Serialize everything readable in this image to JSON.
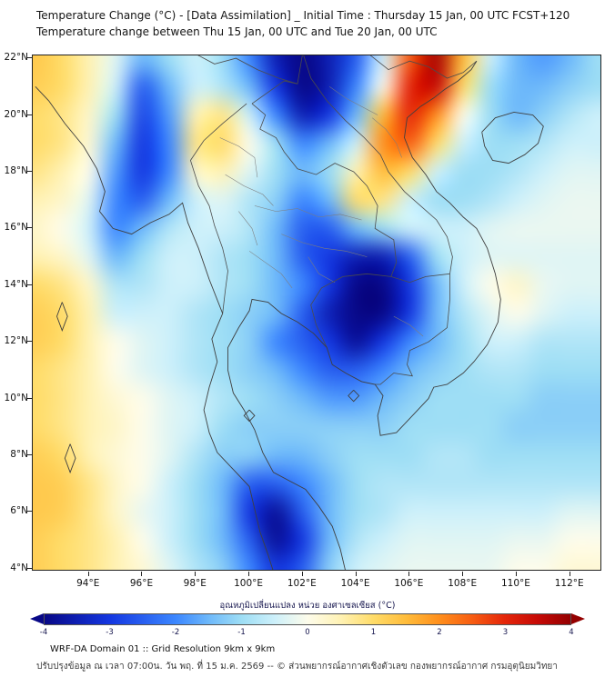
{
  "footer": {
    "line1": "WRF-DA Domain 01 :: Grid Resolution 9km x 9km",
    "line2": "ปรับปรุงข้อมูล ณ เวลา 07:00น. วัน พฤ. ที่ 15 ม.ค. 2569 -- © ส่วนพยากรณ์อากาศเชิงตัวเลข กองพยากรณ์อากาศ กรมอุตุนิยมวิทยา"
  },
  "chart_data": {
    "type": "heatmap",
    "title": "Temperature Change (°C) - [Data Assimilation] _ Initial Time : Thursday 15 Jan, 00 UTC FCST+120",
    "subtitle": "Temperature change between Thu 15 Jan, 00 UTC and Tue 20 Jan, 00 UTC",
    "projection": "lon-lat",
    "lon_range": [
      91.9,
      113.2
    ],
    "lat_range": [
      3.9,
      22.1
    ],
    "x_ticks": [
      {
        "value": 94,
        "label": "94°E"
      },
      {
        "value": 96,
        "label": "96°E"
      },
      {
        "value": 98,
        "label": "98°E"
      },
      {
        "value": 100,
        "label": "100°E"
      },
      {
        "value": 102,
        "label": "102°E"
      },
      {
        "value": 104,
        "label": "104°E"
      },
      {
        "value": 106,
        "label": "106°E"
      },
      {
        "value": 108,
        "label": "108°E"
      },
      {
        "value": 110,
        "label": "110°E"
      },
      {
        "value": 112,
        "label": "112°E"
      }
    ],
    "y_ticks": [
      {
        "value": 22,
        "label": "22°N"
      },
      {
        "value": 20,
        "label": "20°N"
      },
      {
        "value": 18,
        "label": "18°N"
      },
      {
        "value": 16,
        "label": "16°N"
      },
      {
        "value": 14,
        "label": "14°N"
      },
      {
        "value": 12,
        "label": "12°N"
      },
      {
        "value": 10,
        "label": "10°N"
      },
      {
        "value": 8,
        "label": "8°N"
      },
      {
        "value": 6,
        "label": "6°N"
      },
      {
        "value": 4,
        "label": "4°N"
      }
    ],
    "grid": {
      "lon0": 92,
      "dlon": 1,
      "lat0": 22,
      "dlat": -1
    },
    "values_c": [
      [
        1.3,
        1.0,
        0.5,
        -0.3,
        -1.5,
        -1.0,
        -0.5,
        -1.0,
        -2.0,
        -3.5,
        -4.2,
        -3.5,
        -2.5,
        -0.5,
        2.5,
        3.8,
        1.5,
        -0.5,
        -1.5,
        -1.8,
        -1.5,
        -1.0
      ],
      [
        1.2,
        1.0,
        0.5,
        -0.5,
        -2.5,
        -1.5,
        -0.5,
        -0.8,
        -1.5,
        -3.0,
        -4.0,
        -3.5,
        -2.0,
        0.0,
        3.0,
        3.5,
        1.0,
        -1.0,
        -1.5,
        -1.5,
        -1.2,
        -1.0
      ],
      [
        1.0,
        0.8,
        0.3,
        -1.0,
        -2.8,
        -1.8,
        0.5,
        0.8,
        -0.5,
        -2.0,
        -3.5,
        -3.0,
        -1.5,
        1.5,
        3.0,
        2.0,
        0.0,
        -1.0,
        -1.5,
        -1.2,
        -0.8,
        -0.5
      ],
      [
        1.0,
        0.8,
        0.2,
        -1.5,
        -3.0,
        -2.0,
        0.8,
        1.0,
        0.0,
        -1.0,
        -2.0,
        -1.5,
        -0.5,
        2.0,
        2.5,
        1.0,
        -0.5,
        -1.0,
        -1.0,
        -0.8,
        -0.5,
        -0.5
      ],
      [
        0.8,
        0.5,
        0.0,
        -1.8,
        -3.0,
        -2.0,
        0.3,
        0.5,
        -0.3,
        -1.0,
        -1.5,
        -1.0,
        0.5,
        1.5,
        1.0,
        -0.5,
        -1.0,
        -1.0,
        -0.8,
        -0.5,
        -0.3,
        -0.3
      ],
      [
        0.5,
        0.3,
        -0.3,
        -2.0,
        -2.5,
        -1.5,
        -0.5,
        -0.3,
        -0.8,
        -1.2,
        -2.0,
        -1.5,
        1.0,
        0.8,
        -0.5,
        -1.0,
        -1.0,
        -0.8,
        -0.5,
        -0.3,
        -0.2,
        -0.2
      ],
      [
        0.3,
        0.0,
        -0.5,
        -2.0,
        -1.5,
        -0.8,
        -0.5,
        -0.5,
        -0.8,
        -1.5,
        -2.5,
        -2.5,
        -1.5,
        -1.0,
        -0.5,
        -0.5,
        -0.5,
        -0.3,
        -0.2,
        -0.2,
        -0.2,
        -0.2
      ],
      [
        0.5,
        0.3,
        -0.3,
        -1.5,
        -1.0,
        -0.5,
        -0.5,
        -0.8,
        -1.0,
        -1.5,
        -2.5,
        -3.0,
        -3.5,
        -3.5,
        -2.5,
        -1.0,
        -0.5,
        -0.3,
        -0.3,
        -0.3,
        -0.3,
        -0.3
      ],
      [
        1.0,
        0.8,
        0.3,
        -0.8,
        -0.8,
        -0.5,
        -0.5,
        -0.8,
        -1.0,
        -1.5,
        -2.0,
        -3.0,
        -4.2,
        -4.2,
        -3.0,
        -1.5,
        -0.5,
        0.0,
        0.3,
        -0.2,
        -0.3,
        -0.3
      ],
      [
        1.2,
        1.0,
        0.5,
        -0.5,
        -0.5,
        -0.5,
        -0.8,
        -1.0,
        -1.2,
        -1.5,
        -2.5,
        -3.5,
        -4.2,
        -4.2,
        -3.0,
        -1.5,
        -0.8,
        -0.3,
        0.0,
        -0.3,
        -0.5,
        -0.5
      ],
      [
        1.2,
        1.0,
        0.5,
        0.0,
        -0.3,
        -0.5,
        -0.8,
        -1.0,
        -1.2,
        -2.0,
        -2.5,
        -3.0,
        -3.8,
        -3.0,
        -2.0,
        -1.5,
        -1.0,
        -0.5,
        -0.5,
        -0.8,
        -0.8,
        -0.8
      ],
      [
        1.0,
        0.8,
        0.5,
        0.0,
        -0.3,
        -0.5,
        -0.8,
        -1.0,
        -1.2,
        -1.5,
        -2.0,
        -2.5,
        -2.5,
        -2.0,
        -1.5,
        -1.2,
        -1.0,
        -0.8,
        -0.8,
        -1.0,
        -1.0,
        -1.0
      ],
      [
        1.0,
        0.8,
        0.5,
        0.2,
        0.0,
        -0.3,
        -0.5,
        -0.8,
        -1.0,
        -1.2,
        -1.5,
        -1.8,
        -1.8,
        -1.5,
        -1.2,
        -1.0,
        -1.0,
        -1.0,
        -1.0,
        -1.2,
        -1.2,
        -1.2
      ],
      [
        1.0,
        0.8,
        0.5,
        0.3,
        0.0,
        -0.3,
        -0.5,
        -1.0,
        -1.2,
        -1.2,
        -1.2,
        -1.2,
        -1.2,
        -1.2,
        -1.0,
        -1.0,
        -1.0,
        -1.0,
        -1.2,
        -1.2,
        -1.2,
        -1.2
      ],
      [
        1.2,
        1.0,
        0.5,
        0.2,
        0.0,
        -0.3,
        -0.8,
        -1.2,
        -1.2,
        -1.5,
        -1.5,
        -1.2,
        -1.0,
        -1.0,
        -1.0,
        -0.8,
        -0.8,
        -1.0,
        -1.0,
        -1.0,
        -1.0,
        -1.0
      ],
      [
        1.3,
        1.2,
        0.8,
        0.3,
        0.0,
        -0.5,
        -1.0,
        -1.5,
        -2.5,
        -2.5,
        -2.0,
        -1.5,
        -1.0,
        -0.8,
        -0.8,
        -0.8,
        -0.8,
        -0.8,
        -0.8,
        -0.8,
        -0.8,
        -0.8
      ],
      [
        1.3,
        1.2,
        0.8,
        0.3,
        -0.2,
        -0.5,
        -1.0,
        -1.5,
        -3.0,
        -3.8,
        -2.5,
        -1.5,
        -1.0,
        -0.8,
        -0.5,
        -0.5,
        -0.5,
        -0.5,
        -0.5,
        -0.5,
        -0.3,
        -0.3
      ],
      [
        1.2,
        1.0,
        0.8,
        0.5,
        0.0,
        -0.5,
        -1.0,
        -1.5,
        -2.5,
        -3.8,
        -3.0,
        -1.5,
        -0.8,
        -0.5,
        -0.3,
        -0.3,
        -0.3,
        -0.3,
        -0.2,
        -0.2,
        0.0,
        0.0
      ],
      [
        1.2,
        1.0,
        0.8,
        0.5,
        0.2,
        -0.3,
        -0.8,
        -1.2,
        -2.0,
        -3.0,
        -2.5,
        -1.2,
        -0.5,
        -0.3,
        -0.2,
        -0.2,
        -0.2,
        -0.2,
        0.0,
        0.0,
        0.2,
        0.2
      ]
    ],
    "colorbar": {
      "label": "อุณหภูมิเปลี่ยนแปลง หน่วย องศาเซลเซียส (°C)",
      "range": [
        -4,
        4
      ],
      "tick_values": [
        -4,
        -3,
        -2,
        -1,
        0,
        1,
        2,
        3,
        4
      ],
      "stops": [
        {
          "v": -4,
          "c": [
            8,
            8,
            135
          ]
        },
        {
          "v": -3,
          "c": [
            20,
            55,
            225
          ]
        },
        {
          "v": -2,
          "c": [
            60,
            135,
            255
          ]
        },
        {
          "v": -1.5,
          "c": [
            110,
            185,
            250
          ]
        },
        {
          "v": -1,
          "c": [
            158,
            222,
            245
          ]
        },
        {
          "v": -0.5,
          "c": [
            205,
            240,
            250
          ]
        },
        {
          "v": 0,
          "c": [
            253,
            252,
            235
          ]
        },
        {
          "v": 0.5,
          "c": [
            255,
            242,
            180
          ]
        },
        {
          "v": 1,
          "c": [
            255,
            220,
            105
          ]
        },
        {
          "v": 1.5,
          "c": [
            255,
            188,
            58
          ]
        },
        {
          "v": 2,
          "c": [
            255,
            143,
            28
          ]
        },
        {
          "v": 2.5,
          "c": [
            247,
            93,
            18
          ]
        },
        {
          "v": 3,
          "c": [
            228,
            38,
            10
          ]
        },
        {
          "v": 3.5,
          "c": [
            198,
            10,
            6
          ]
        },
        {
          "v": 4,
          "c": [
            148,
            0,
            0
          ]
        }
      ]
    }
  }
}
